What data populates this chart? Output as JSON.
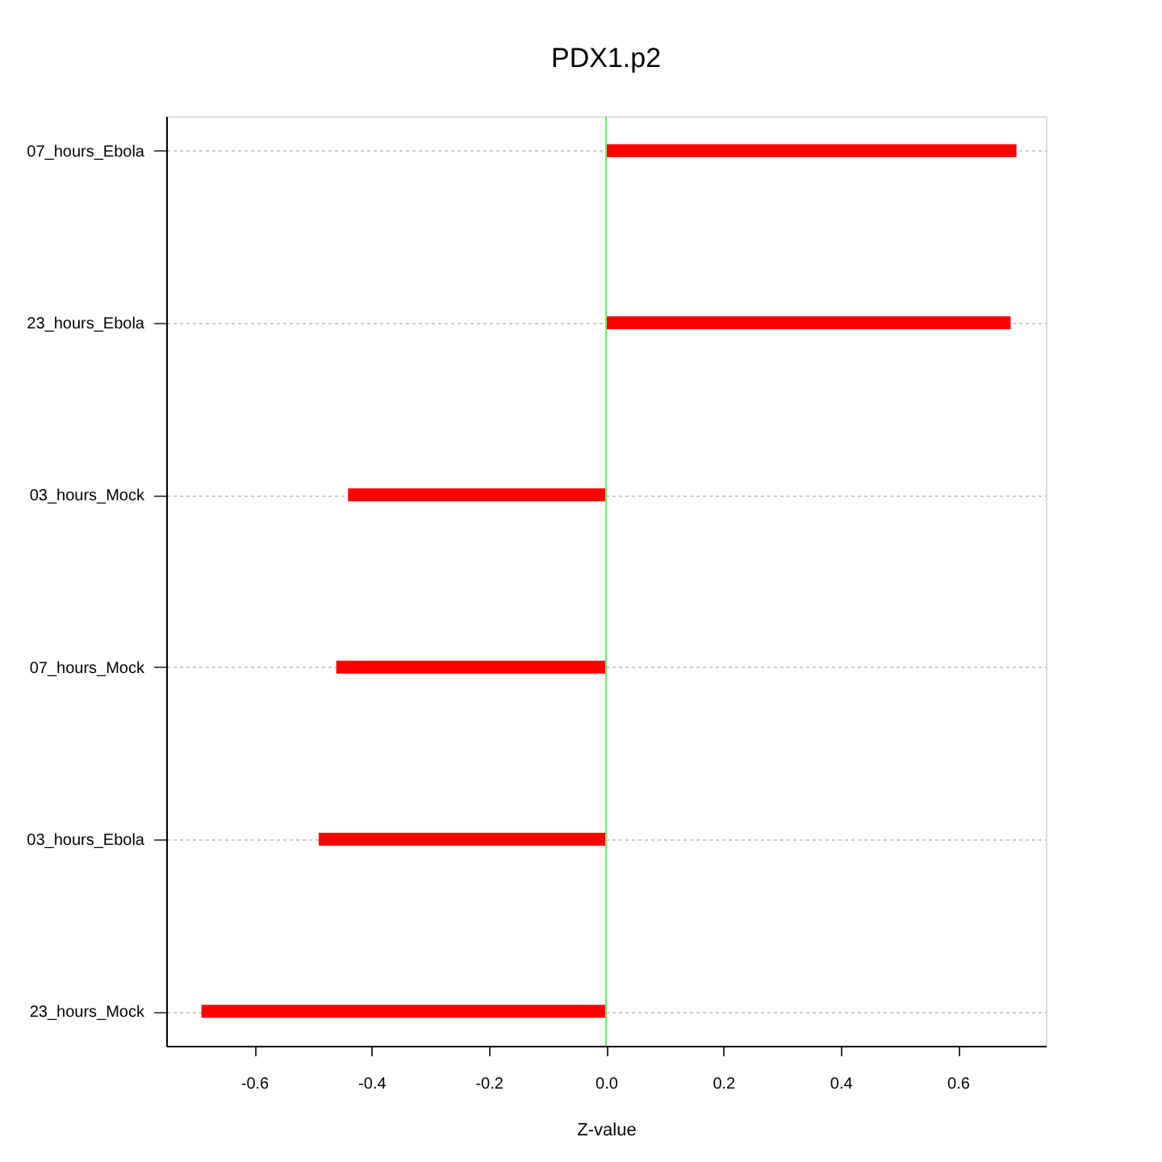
{
  "chart_data": {
    "type": "bar",
    "orientation": "horizontal",
    "title": "PDX1.p2",
    "xlabel": "Z-value",
    "categories": [
      "07_hours_Ebola",
      "23_hours_Ebola",
      "03_hours_Mock",
      "07_hours_Mock",
      "03_hours_Ebola",
      "23_hours_Mock"
    ],
    "values": [
      0.7,
      0.69,
      -0.44,
      -0.46,
      -0.49,
      -0.69
    ],
    "color": "#ff0000",
    "xlim": [
      -0.75,
      0.75
    ],
    "xticks": [
      -0.6,
      -0.4,
      -0.2,
      {
        "value": 0,
        "label": "0.0"
      },
      0.2,
      0.4,
      0.6
    ],
    "grid": "y",
    "ref_lines": [
      {
        "axis": "x",
        "value": 0,
        "color": "#66ee66"
      }
    ]
  }
}
